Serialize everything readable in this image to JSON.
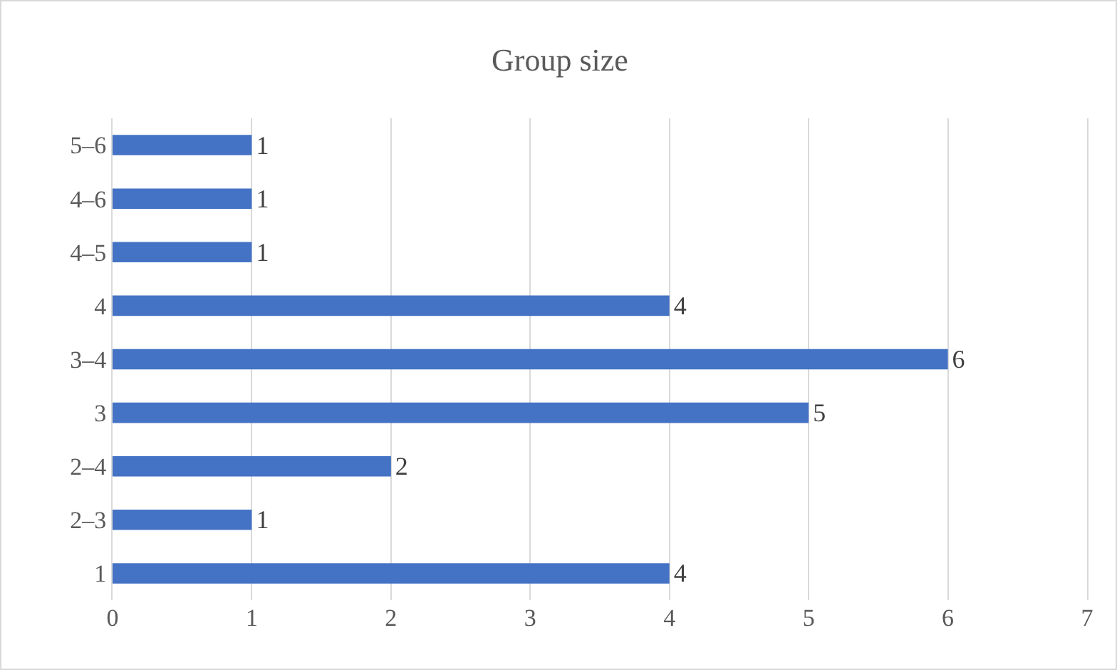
{
  "chart_data": {
    "type": "bar",
    "orientation": "horizontal",
    "title": "Group size",
    "categories": [
      "5–6",
      "4–6",
      "4–5",
      "4",
      "3–4",
      "3",
      "2–4",
      "2–3",
      "1"
    ],
    "values": [
      1,
      1,
      1,
      4,
      6,
      5,
      2,
      1,
      4
    ],
    "color": "#4472c4",
    "xlim": [
      0,
      7
    ],
    "xticks": [
      0,
      1,
      2,
      3,
      4,
      5,
      6,
      7
    ],
    "grid": "x",
    "data_labels": true
  }
}
